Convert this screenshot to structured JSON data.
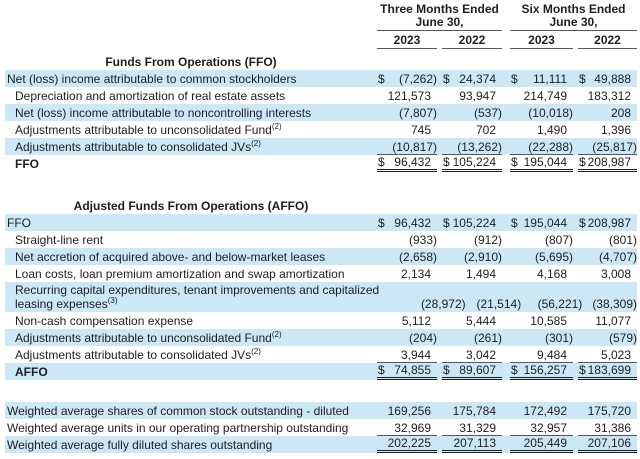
{
  "header": {
    "groups": [
      {
        "line1": "Three Months Ended",
        "line2": "June 30,"
      },
      {
        "line1": "Six Months Ended",
        "line2": "June 30,"
      }
    ],
    "years": [
      "2023",
      "2022",
      "2023",
      "2022"
    ]
  },
  "sections": [
    {
      "title": "Funds From Operations (FFO)",
      "rows": [
        {
          "label": "Net (loss) income attributable to common stockholders",
          "dollar_sign": "$",
          "values": [
            "(7,262)",
            "24,374",
            "11,111",
            "49,888"
          ]
        },
        {
          "label": "Depreciation and amortization of real estate assets",
          "values": [
            "121,573",
            "93,947",
            "214,749",
            "183,312"
          ]
        },
        {
          "label": "Net (loss) income attributable to noncontrolling interests",
          "values": [
            "(7,807)",
            "(537)",
            "(10,018)",
            "208"
          ]
        },
        {
          "label": "Adjustments attributable to unconsolidated Fund",
          "sup": "(2)",
          "values": [
            "745",
            "702",
            "1,490",
            "1,396"
          ]
        },
        {
          "label": "Adjustments attributable to consolidated JVs",
          "sup": "(2)",
          "values": [
            "(10,817)",
            "(13,262)",
            "(22,288)",
            "(25,817)"
          ]
        },
        {
          "label": "FFO",
          "dollar_sign": "$",
          "values": [
            "96,432",
            "105,224",
            "195,044",
            "208,987"
          ]
        }
      ]
    },
    {
      "title": "Adjusted Funds From Operations (AFFO)",
      "rows": [
        {
          "label": "FFO",
          "dollar_sign": "$",
          "values": [
            "96,432",
            "105,224",
            "195,044",
            "208,987"
          ]
        },
        {
          "label": "Straight-line rent",
          "values": [
            "(933)",
            "(912)",
            "(807)",
            "(801)"
          ]
        },
        {
          "label": "Net accretion of acquired above- and below-market leases",
          "values": [
            "(2,658)",
            "(2,910)",
            "(5,695)",
            "(4,707)"
          ]
        },
        {
          "label": "Loan costs, loan premium amortization and swap amortization",
          "values": [
            "2,134",
            "1,494",
            "4,168",
            "3,008"
          ]
        },
        {
          "label": "Recurring capital expenditures, tenant improvements and capitalized leasing expenses",
          "sup": "(3)",
          "values": [
            "(28,972)",
            "(21,514)",
            "(56,221)",
            "(38,309)"
          ]
        },
        {
          "label": "Non-cash compensation expense",
          "values": [
            "5,112",
            "5,444",
            "10,585",
            "11,077"
          ]
        },
        {
          "label": "Adjustments attributable to unconsolidated Fund",
          "sup": "(2)",
          "values": [
            "(204)",
            "(261)",
            "(301)",
            "(579)"
          ]
        },
        {
          "label": "Adjustments attributable to consolidated JVs",
          "sup": "(2)",
          "values": [
            "3,944",
            "3,042",
            "9,484",
            "5,023"
          ]
        },
        {
          "label": "AFFO",
          "dollar_sign": "$",
          "values": [
            "74,855",
            "89,607",
            "156,257",
            "183,699"
          ]
        }
      ]
    },
    {
      "title": "",
      "rows": [
        {
          "label": "Weighted average shares of common stock outstanding - diluted",
          "values": [
            "169,256",
            "175,784",
            "172,492",
            "175,720"
          ]
        },
        {
          "label": "Weighted average units in our operating partnership outstanding",
          "values": [
            "32,969",
            "31,329",
            "32,957",
            "31,386"
          ]
        },
        {
          "label": "Weighted average fully diluted shares outstanding",
          "values": [
            "202,225",
            "207,113",
            "205,449",
            "207,106"
          ]
        }
      ]
    }
  ],
  "colors": {
    "row_highlight": "#cce7f5",
    "text": "#1e1e1e",
    "rule": "#54585a"
  }
}
